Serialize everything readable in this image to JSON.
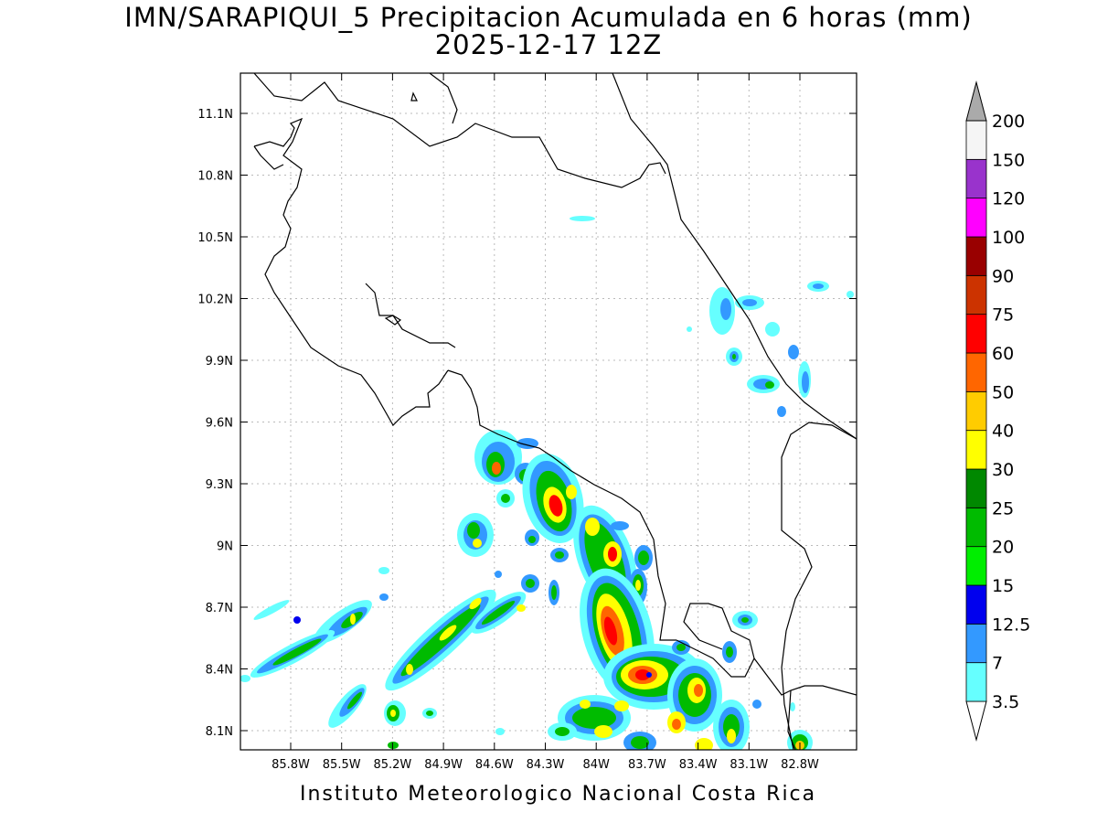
{
  "title": {
    "line1": "IMN/SARAPIQUI_5 Precipitacion Acumulada en 6 horas (mm)",
    "line2": "2025-12-17 12Z"
  },
  "footer": "Instituto Meteorologico Nacional Costa Rica",
  "axes": {
    "lon_ticks": [
      "85.8W",
      "85.5W",
      "85.2W",
      "84.9W",
      "84.6W",
      "84.3W",
      "84W",
      "83.7W",
      "83.4W",
      "83.1W",
      "82.8W"
    ],
    "lat_ticks": [
      "11.1N",
      "10.8N",
      "10.5N",
      "10.2N",
      "9.9N",
      "9.6N",
      "9.3N",
      "9N",
      "8.7N",
      "8.4N",
      "8.1N"
    ],
    "grid": true
  },
  "colorbar": {
    "labels": [
      "3.5",
      "7",
      "12.5",
      "15",
      "20",
      "25",
      "30",
      "40",
      "50",
      "60",
      "75",
      "90",
      "100",
      "120",
      "150",
      "200"
    ],
    "colors": [
      "#66ffff",
      "#3399ff",
      "#0000ee",
      "#00ee00",
      "#00bb00",
      "#008800",
      "#ffff00",
      "#ffcc00",
      "#ff6600",
      "#ff0000",
      "#cc3300",
      "#990000",
      "#ff00ff",
      "#9933cc",
      "#f5f5f5",
      "#aaaaaa"
    ]
  }
}
